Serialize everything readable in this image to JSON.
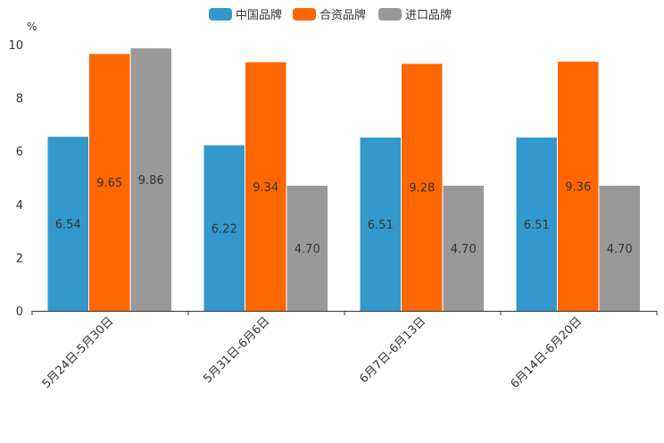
{
  "chart_data": {
    "type": "bar",
    "title": "",
    "xlabel": "",
    "ylabel": "%",
    "ylim": [
      0,
      10
    ],
    "yticks": [
      0,
      2,
      4,
      6,
      8,
      10
    ],
    "grid": false,
    "legend_position": "top-center",
    "categories": [
      "5月24日-5月30日",
      "5月31日-6月6日",
      "6月7日-6月13日",
      "6月14日-6月20日"
    ],
    "series": [
      {
        "name": "中国品牌",
        "color": "#3399CC",
        "values": [
          6.54,
          6.22,
          6.51,
          6.51
        ],
        "labels": [
          "6.54",
          "6.22",
          "6.51",
          "6.51"
        ]
      },
      {
        "name": "合资品牌",
        "color": "#FF6600",
        "values": [
          9.65,
          9.34,
          9.28,
          9.36
        ],
        "labels": [
          "9.65",
          "9.34",
          "9.28",
          "9.36"
        ]
      },
      {
        "name": "进口品牌",
        "color": "#999999",
        "values": [
          9.86,
          4.7,
          4.7,
          4.7
        ],
        "labels": [
          "9.86",
          "4.70",
          "4.70",
          "4.70"
        ]
      }
    ]
  }
}
